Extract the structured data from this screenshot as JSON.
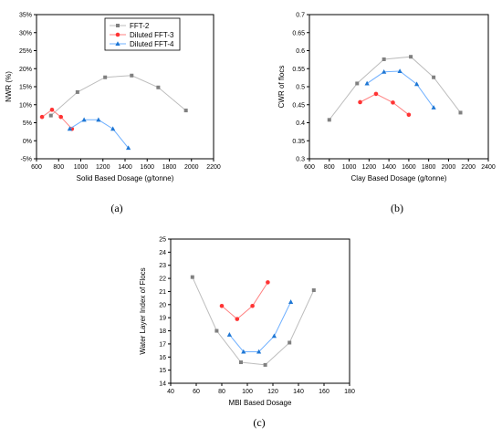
{
  "colors": {
    "fft2": "#808080",
    "fft3": "#ff3333",
    "fft4": "#1f77d4",
    "fft2_line": "#bdbdbd",
    "fft3_line": "#ff8080",
    "fft4_line": "#6fb0ff"
  },
  "chart_data": [
    {
      "type": "line",
      "caption": "(a)",
      "xlabel": "Solid Based Dosage (g/tonne)",
      "ylabel": "NWR (%)",
      "xlim": [
        600,
        2200
      ],
      "ylim": [
        -5,
        35
      ],
      "xticks": [
        "600",
        "800",
        "1000",
        "1200",
        "1400",
        "1600",
        "1800",
        "2000",
        "2200"
      ],
      "yticks": [
        "-5%",
        "0%",
        "5%",
        "10%",
        "15%",
        "20%",
        "25%",
        "30%",
        "35%"
      ],
      "legend": "top-left",
      "series": [
        {
          "name": "FFT-2",
          "color": "fft2",
          "marker": "square",
          "x": [
            730,
            970,
            1220,
            1460,
            1700,
            1950
          ],
          "y": [
            7.0,
            13.5,
            17.6,
            18.1,
            14.8,
            8.4
          ]
        },
        {
          "name": "Diluted FFT-3",
          "color": "fft3",
          "marker": "circle",
          "x": [
            650,
            740,
            820,
            920
          ],
          "y": [
            6.6,
            8.6,
            6.6,
            3.3
          ]
        },
        {
          "name": "Diluted FFT-4",
          "color": "fft4",
          "marker": "triangle",
          "x": [
            900,
            1030,
            1160,
            1290,
            1430
          ],
          "y": [
            3.3,
            5.8,
            5.8,
            3.3,
            -2.0
          ]
        }
      ]
    },
    {
      "type": "line",
      "caption": "(b)",
      "xlabel": "Clay Based Dosage (g/tonne)",
      "ylabel": "CWR of flocs",
      "xlim": [
        600,
        2400
      ],
      "ylim": [
        0.3,
        0.7
      ],
      "xticks": [
        "600",
        "800",
        "1000",
        "1200",
        "1400",
        "1600",
        "1800",
        "2000",
        "2200",
        "2400"
      ],
      "yticks": [
        "0.3",
        "0.35",
        "0.4",
        "0.45",
        "0.5",
        "0.55",
        "0.6",
        "0.65",
        "0.7"
      ],
      "series": [
        {
          "name": "FFT-2",
          "color": "fft2",
          "marker": "square",
          "x": [
            800,
            1080,
            1350,
            1620,
            1850,
            2120
          ],
          "y": [
            0.408,
            0.509,
            0.576,
            0.583,
            0.526,
            0.428
          ]
        },
        {
          "name": "Diluted FFT-3",
          "color": "fft3",
          "marker": "circle",
          "x": [
            1110,
            1270,
            1440,
            1600
          ],
          "y": [
            0.457,
            0.48,
            0.456,
            0.422
          ]
        },
        {
          "name": "Diluted FFT-4",
          "color": "fft4",
          "marker": "triangle",
          "x": [
            1180,
            1350,
            1510,
            1680,
            1850
          ],
          "y": [
            0.509,
            0.541,
            0.543,
            0.507,
            0.442
          ]
        }
      ]
    },
    {
      "type": "line",
      "caption": "(c)",
      "xlabel": "MBI Based Dosage",
      "ylabel": "Water Layer Index of Flocs",
      "xlim": [
        40,
        180
      ],
      "ylim": [
        14,
        25
      ],
      "xticks": [
        "40",
        "60",
        "80",
        "100",
        "120",
        "140",
        "160",
        "180"
      ],
      "yticks": [
        "14",
        "15",
        "16",
        "17",
        "18",
        "19",
        "20",
        "21",
        "22",
        "23",
        "24",
        "25"
      ],
      "series": [
        {
          "name": "FFT-2",
          "color": "fft2",
          "marker": "square",
          "x": [
            57,
            76,
            95,
            114,
            133,
            152
          ],
          "y": [
            22.1,
            18.0,
            15.6,
            15.4,
            17.1,
            21.1
          ]
        },
        {
          "name": "Diluted FFT-3",
          "color": "fft3",
          "marker": "circle",
          "x": [
            80,
            92,
            104,
            116
          ],
          "y": [
            19.9,
            18.9,
            19.9,
            21.7
          ]
        },
        {
          "name": "Diluted FFT-4",
          "color": "fft4",
          "marker": "triangle",
          "x": [
            86,
            97,
            109,
            121,
            134
          ],
          "y": [
            17.7,
            16.4,
            16.4,
            17.6,
            20.2
          ]
        }
      ]
    }
  ]
}
